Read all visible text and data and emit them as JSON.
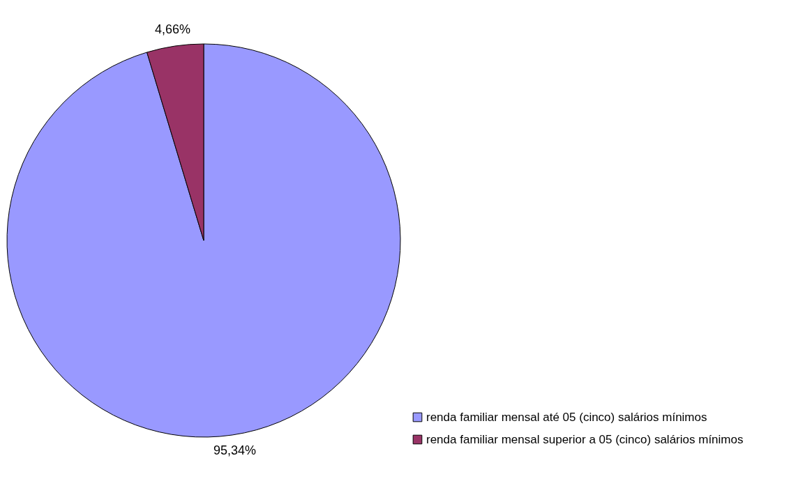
{
  "chart_data": {
    "type": "pie",
    "categories": [
      "renda familiar mensal até 05 (cinco) salários mínimos",
      "renda familiar mensal superior a 05 (cinco) salários mínimos"
    ],
    "values": [
      95.34,
      4.66
    ],
    "colors": [
      "#9999ff",
      "#993366"
    ],
    "value_labels": [
      "95,34%",
      "4,66%"
    ],
    "legend": "bottom right"
  }
}
